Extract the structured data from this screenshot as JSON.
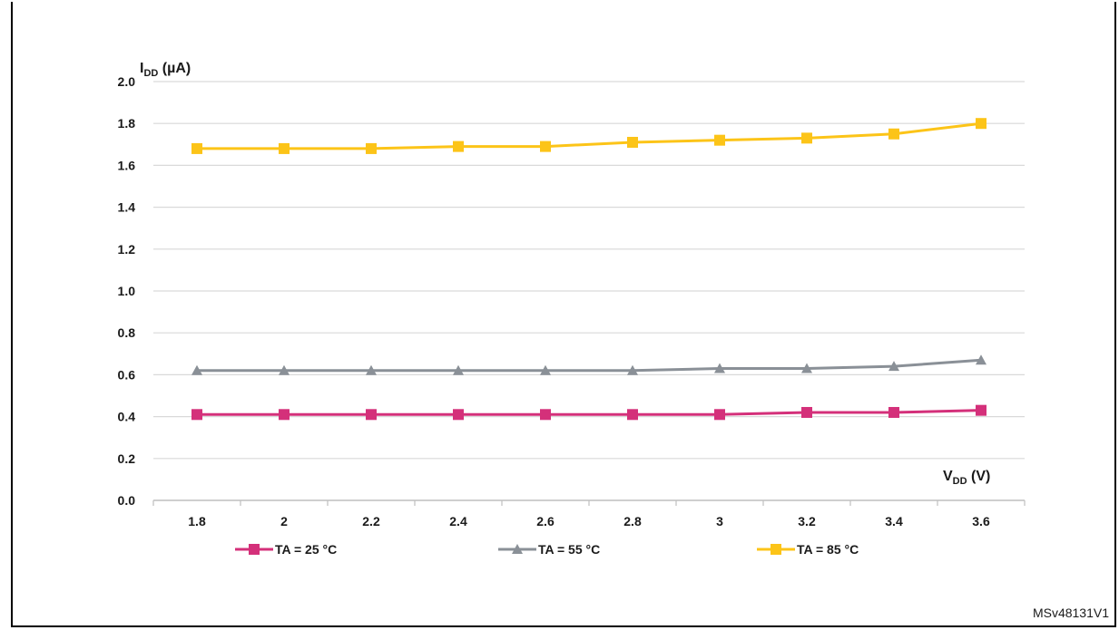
{
  "figure_id": "MSv48131V1",
  "chart_data": {
    "type": "line",
    "y_axis": {
      "name": "I",
      "subscript": "DD",
      "unit": "(µA)",
      "ylim": [
        0.0,
        2.0
      ],
      "ticks": [
        "0.0",
        "0.2",
        "0.4",
        "0.6",
        "0.8",
        "1.0",
        "1.2",
        "1.4",
        "1.6",
        "1.8",
        "2.0"
      ]
    },
    "x_axis": {
      "name": "V",
      "subscript": "DD",
      "unit": "(V)"
    },
    "categories": [
      "1.8",
      "2",
      "2.2",
      "2.4",
      "2.6",
      "2.8",
      "3",
      "3.2",
      "3.4",
      "3.6"
    ],
    "grid": true,
    "legend_position": "bottom",
    "series": [
      {
        "name": "TA = 25 °C",
        "color": "#d4307a",
        "marker": "square",
        "values": [
          0.41,
          0.41,
          0.41,
          0.41,
          0.41,
          0.41,
          0.41,
          0.42,
          0.42,
          0.43
        ]
      },
      {
        "name": "TA = 55 °C",
        "color": "#8a9097",
        "marker": "triangle",
        "values": [
          0.62,
          0.62,
          0.62,
          0.62,
          0.62,
          0.62,
          0.63,
          0.63,
          0.64,
          0.67
        ]
      },
      {
        "name": "TA = 85 °C",
        "color": "#fcc418",
        "marker": "square",
        "values": [
          1.68,
          1.68,
          1.68,
          1.69,
          1.69,
          1.71,
          1.72,
          1.73,
          1.75,
          1.8
        ]
      }
    ]
  }
}
